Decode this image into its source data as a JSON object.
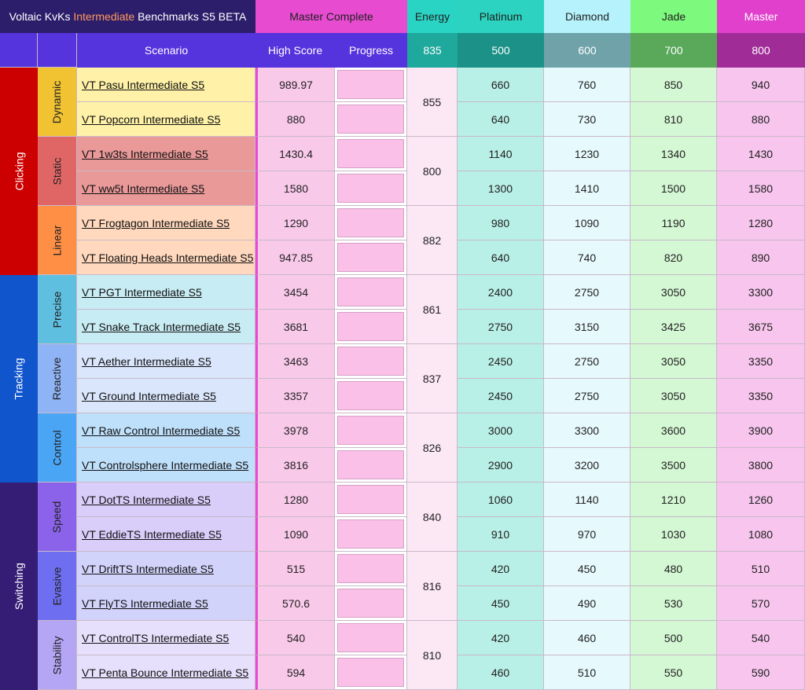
{
  "header": {
    "title_prefix": "Voltaic KvKs ",
    "title_accent": "Intermediate",
    "title_suffix": " Benchmarks S5 BETA",
    "master_complete": "Master Complete",
    "energy": "Energy",
    "ranks": [
      "Platinum",
      "Diamond",
      "Jade",
      "Master"
    ],
    "col_scenario": "Scenario",
    "col_high_score": "High Score",
    "col_progress": "Progress",
    "energy_req": "835",
    "rank_reqs": [
      "500",
      "600",
      "700",
      "800"
    ]
  },
  "colors": {
    "title_bg": "#2c1e6b",
    "header_row_bg": "#5533dd",
    "master_complete_bg": "#e64bd0",
    "energy_bg": "#2ad4c4",
    "platinum_bg": "#2cd3c0",
    "diamond_bg": "#b5f2fb",
    "jade_bg": "#7dfa7d",
    "master_bg": "#e140cc",
    "clicking_bg": "#cc0000",
    "tracking_bg": "#1155cc",
    "switching_bg": "#351c75",
    "platinum_cell": "#b8efe6",
    "diamond_cell": "#e6f9fd",
    "jade_cell": "#d4f7d4",
    "master_cell": "#f7c5ee"
  },
  "categories": [
    {
      "name": "Clicking",
      "color": "#cc0000",
      "subs": [
        {
          "name": "Dynamic",
          "color": "#f1c232",
          "row_bg": "#fff2a8",
          "energy": "855",
          "rows": [
            {
              "scenario": "VT Pasu Intermediate S5",
              "high": "989.97",
              "ranks": [
                "660",
                "760",
                "850",
                "940"
              ]
            },
            {
              "scenario": "VT Popcorn Intermediate S5",
              "high": "880",
              "ranks": [
                "640",
                "730",
                "810",
                "880"
              ]
            }
          ]
        },
        {
          "name": "Static",
          "color": "#e06666",
          "row_bg": "#ea9999",
          "energy": "800",
          "rows": [
            {
              "scenario": "VT 1w3ts Intermediate S5",
              "high": "1430.4",
              "ranks": [
                "1140",
                "1230",
                "1340",
                "1430"
              ]
            },
            {
              "scenario": "VT ww5t Intermediate S5",
              "high": "1580",
              "ranks": [
                "1300",
                "1410",
                "1500",
                "1580"
              ]
            }
          ]
        },
        {
          "name": "Linear",
          "color": "#ff8f45",
          "row_bg": "#ffd8bd",
          "energy": "882",
          "rows": [
            {
              "scenario": "VT Frogtagon Intermediate S5",
              "high": "1290",
              "ranks": [
                "980",
                "1090",
                "1190",
                "1280"
              ]
            },
            {
              "scenario": "VT Floating Heads Intermediate S5",
              "high": "947.85",
              "ranks": [
                "640",
                "740",
                "820",
                "890"
              ]
            }
          ]
        }
      ]
    },
    {
      "name": "Tracking",
      "color": "#1155cc",
      "subs": [
        {
          "name": "Precise",
          "color": "#5fbfe0",
          "row_bg": "#c8ecf3",
          "energy": "861",
          "rows": [
            {
              "scenario": "VT PGT Intermediate S5",
              "high": "3454",
              "ranks": [
                "2400",
                "2750",
                "3050",
                "3300"
              ]
            },
            {
              "scenario": "VT Snake Track Intermediate S5",
              "high": "3681",
              "ranks": [
                "2750",
                "3150",
                "3425",
                "3675"
              ]
            }
          ]
        },
        {
          "name": "Reactive",
          "color": "#8fb4f5",
          "row_bg": "#dae6fc",
          "energy": "837",
          "rows": [
            {
              "scenario": "VT Aether Intermediate S5",
              "high": "3463",
              "ranks": [
                "2450",
                "2750",
                "3050",
                "3350"
              ]
            },
            {
              "scenario": "VT Ground Intermediate S5",
              "high": "3357",
              "ranks": [
                "2450",
                "2750",
                "3050",
                "3350"
              ]
            }
          ]
        },
        {
          "name": "Control",
          "color": "#4aa6f5",
          "row_bg": "#bfe0fb",
          "energy": "826",
          "rows": [
            {
              "scenario": "VT Raw Control Intermediate S5",
              "high": "3978",
              "ranks": [
                "3000",
                "3300",
                "3600",
                "3900"
              ]
            },
            {
              "scenario": "VT Controlsphere Intermediate S5",
              "high": "3816",
              "ranks": [
                "2900",
                "3200",
                "3500",
                "3800"
              ]
            }
          ]
        }
      ]
    },
    {
      "name": "Switching",
      "color": "#351c75",
      "subs": [
        {
          "name": "Speed",
          "color": "#8b63ea",
          "row_bg": "#d9cdfa",
          "energy": "840",
          "rows": [
            {
              "scenario": "VT DotTS Intermediate S5",
              "high": "1280",
              "ranks": [
                "1060",
                "1140",
                "1210",
                "1260"
              ]
            },
            {
              "scenario": "VT EddieTS Intermediate S5",
              "high": "1090",
              "ranks": [
                "910",
                "970",
                "1030",
                "1080"
              ]
            }
          ]
        },
        {
          "name": "Evasive",
          "color": "#6d6ef0",
          "row_bg": "#d2d3fb",
          "energy": "816",
          "rows": [
            {
              "scenario": "VT DriftTS Intermediate S5",
              "high": "515",
              "ranks": [
                "420",
                "450",
                "480",
                "510"
              ]
            },
            {
              "scenario": "VT FlyTS Intermediate S5",
              "high": "570.6",
              "ranks": [
                "450",
                "490",
                "530",
                "570"
              ]
            }
          ]
        },
        {
          "name": "Stability",
          "color": "#b4a6f5",
          "row_bg": "#e6e0fc",
          "energy": "810",
          "rows": [
            {
              "scenario": "VT ControlTS Intermediate S5",
              "high": "540",
              "ranks": [
                "420",
                "460",
                "500",
                "540"
              ]
            },
            {
              "scenario": "VT Penta Bounce Intermediate S5",
              "high": "594",
              "ranks": [
                "460",
                "510",
                "550",
                "590"
              ]
            }
          ]
        }
      ]
    }
  ]
}
